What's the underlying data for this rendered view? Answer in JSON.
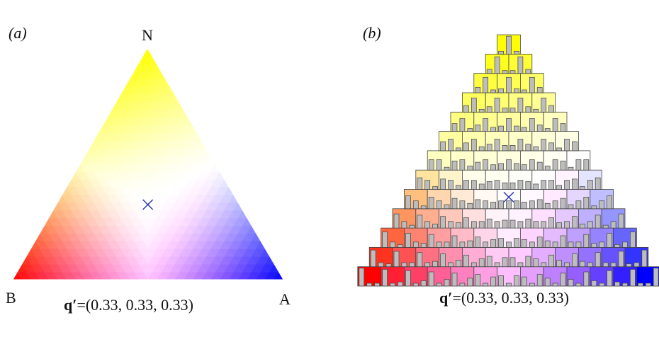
{
  "panel_a": {
    "label": "(a)",
    "corner_top": "N",
    "corner_left": "B",
    "corner_right": "A",
    "caption_symbol": "q′",
    "caption_value": "=(0.33, 0.33, 0.33)",
    "marker_symbol": "×"
  },
  "panel_b": {
    "label": "(b)",
    "caption_symbol": "q′",
    "caption_value": "=(0.33, 0.33, 0.33)",
    "marker_symbol": "×",
    "grid_rows": 13
  },
  "colors": {
    "N": "#ffff00",
    "B": "#ff0000",
    "A": "#0000ff",
    "marker": "#2233aa",
    "bar": "#bdbdbd"
  },
  "marker_composition": [
    0.33,
    0.33,
    0.33
  ]
}
